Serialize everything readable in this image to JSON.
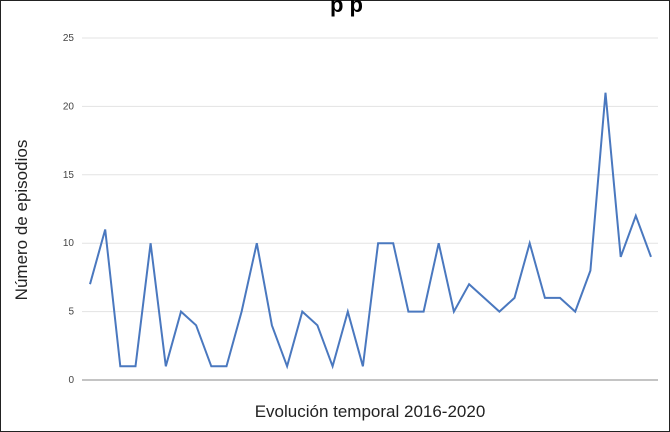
{
  "chart_data": {
    "type": "line",
    "title": "",
    "title_visible_fragment": "p                 p",
    "xlabel": "Evolución temporal 2016-2020",
    "ylabel": "Número de episodios",
    "ylim": [
      0,
      25
    ],
    "yticks": [
      "0",
      "5",
      "10",
      "15",
      "20",
      "25"
    ],
    "grid": true,
    "line_color": "#4a78bf",
    "series": [
      {
        "values": [
          7,
          11,
          1,
          1,
          10,
          1,
          5,
          4,
          1,
          1,
          5,
          10,
          4,
          1,
          5,
          4,
          1,
          5,
          1,
          10,
          10,
          5,
          5,
          10,
          5,
          7,
          6,
          5,
          6,
          10,
          6,
          6,
          5,
          8,
          21,
          9,
          12,
          9
        ]
      }
    ]
  }
}
